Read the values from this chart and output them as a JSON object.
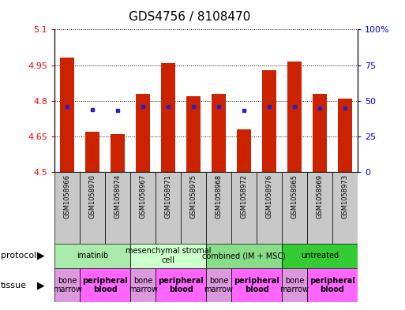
{
  "title": "GDS4756 / 8108470",
  "samples": [
    "GSM1058966",
    "GSM1058970",
    "GSM1058974",
    "GSM1058967",
    "GSM1058971",
    "GSM1058975",
    "GSM1058968",
    "GSM1058972",
    "GSM1058976",
    "GSM1058965",
    "GSM1058969",
    "GSM1058973"
  ],
  "transformed_counts": [
    4.98,
    4.67,
    4.66,
    4.83,
    4.96,
    4.82,
    4.83,
    4.68,
    4.93,
    4.965,
    4.83,
    4.81
  ],
  "percentile_values": [
    4.775,
    4.762,
    4.758,
    4.775,
    4.775,
    4.775,
    4.775,
    4.758,
    4.775,
    4.775,
    4.768,
    4.77
  ],
  "ylim_left": [
    4.5,
    5.1
  ],
  "ylim_right": [
    0,
    100
  ],
  "yticks_left": [
    4.5,
    4.65,
    4.8,
    4.95,
    5.1
  ],
  "yticks_right": [
    0,
    25,
    50,
    75,
    100
  ],
  "ytick_labels_left": [
    "4.5",
    "4.65",
    "4.8",
    "4.95",
    "5.1"
  ],
  "ytick_labels_right": [
    "0",
    "25",
    "50",
    "75",
    "100%"
  ],
  "bar_color": "#CC2200",
  "dot_color": "#2222CC",
  "protocols": [
    {
      "label": "imatinib",
      "start": 0,
      "end": 3,
      "color": "#AAEAAA"
    },
    {
      "label": "mesenchymal stromal\ncell",
      "start": 3,
      "end": 6,
      "color": "#CCFFCC"
    },
    {
      "label": "combined (IM + MSC)",
      "start": 6,
      "end": 9,
      "color": "#88DD88"
    },
    {
      "label": "untreated",
      "start": 9,
      "end": 12,
      "color": "#33CC33"
    }
  ],
  "tissues": [
    {
      "label": "bone\nmarrow",
      "start": 0,
      "end": 1,
      "color": "#DD99DD",
      "bold": false
    },
    {
      "label": "peripheral\nblood",
      "start": 1,
      "end": 3,
      "color": "#FF66FF",
      "bold": true
    },
    {
      "label": "bone\nmarrow",
      "start": 3,
      "end": 4,
      "color": "#DD99DD",
      "bold": false
    },
    {
      "label": "peripheral\nblood",
      "start": 4,
      "end": 6,
      "color": "#FF66FF",
      "bold": true
    },
    {
      "label": "bone\nmarrow",
      "start": 6,
      "end": 7,
      "color": "#DD99DD",
      "bold": false
    },
    {
      "label": "peripheral\nblood",
      "start": 7,
      "end": 9,
      "color": "#FF66FF",
      "bold": true
    },
    {
      "label": "bone\nmarrow",
      "start": 9,
      "end": 10,
      "color": "#DD99DD",
      "bold": false
    },
    {
      "label": "peripheral\nblood",
      "start": 10,
      "end": 12,
      "color": "#FF66FF",
      "bold": true
    }
  ],
  "bar_width": 0.55,
  "title_fontsize": 11,
  "tick_fontsize": 8,
  "sample_fontsize": 6,
  "prot_fontsize": 7,
  "tissue_fontsize": 7,
  "legend_fontsize": 7.5
}
